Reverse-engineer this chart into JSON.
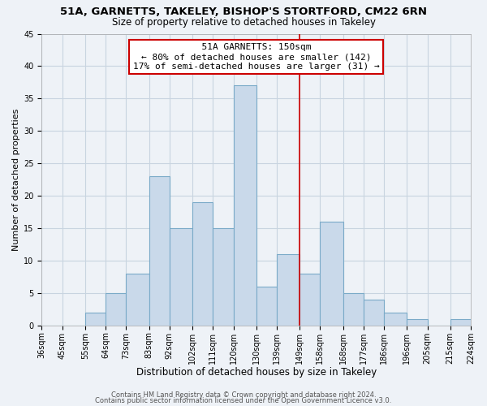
{
  "title1": "51A, GARNETTS, TAKELEY, BISHOP'S STORTFORD, CM22 6RN",
  "title2": "Size of property relative to detached houses in Takeley",
  "xlabel": "Distribution of detached houses by size in Takeley",
  "ylabel": "Number of detached properties",
  "bin_edges": [
    36,
    45,
    55,
    64,
    73,
    83,
    92,
    102,
    111,
    120,
    130,
    139,
    149,
    158,
    168,
    177,
    186,
    196,
    205,
    215,
    224
  ],
  "counts": [
    0,
    0,
    2,
    5,
    8,
    23,
    15,
    19,
    15,
    37,
    6,
    11,
    8,
    16,
    5,
    4,
    2,
    1,
    0,
    1
  ],
  "bar_color": "#c9d9ea",
  "bar_edgecolor": "#7aaac8",
  "vline_x": 149,
  "vline_color": "#cc0000",
  "ylim": [
    0,
    45
  ],
  "yticks": [
    0,
    5,
    10,
    15,
    20,
    25,
    30,
    35,
    40,
    45
  ],
  "xtick_labels": [
    "36sqm",
    "45sqm",
    "55sqm",
    "64sqm",
    "73sqm",
    "83sqm",
    "92sqm",
    "102sqm",
    "111sqm",
    "120sqm",
    "130sqm",
    "139sqm",
    "149sqm",
    "158sqm",
    "168sqm",
    "177sqm",
    "186sqm",
    "196sqm",
    "205sqm",
    "215sqm",
    "224sqm"
  ],
  "annotation_title": "51A GARNETTS: 150sqm",
  "annotation_line1": "← 80% of detached houses are smaller (142)",
  "annotation_line2": "17% of semi-detached houses are larger (31) →",
  "annotation_box_color": "#ffffff",
  "annotation_box_edgecolor": "#cc0000",
  "footer1": "Contains HM Land Registry data © Crown copyright and database right 2024.",
  "footer2": "Contains public sector information licensed under the Open Government Licence v3.0.",
  "background_color": "#eef2f7",
  "grid_color": "#c8d4e0",
  "title1_fontsize": 9.5,
  "title2_fontsize": 8.5,
  "xlabel_fontsize": 8.5,
  "ylabel_fontsize": 8,
  "tick_fontsize": 7,
  "annotation_fontsize": 8,
  "footer_fontsize": 6
}
